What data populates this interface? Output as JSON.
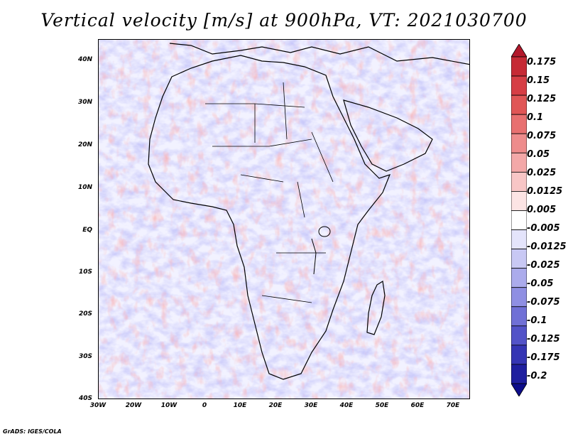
{
  "title": "Vertical velocity [m/s] at 900hPa, VT: 2021030700",
  "footer": "GrADS: IGES/COLA",
  "y_axis_labels": [
    "40N",
    "30N",
    "20N",
    "10N",
    "EQ",
    "10S",
    "20S",
    "30S",
    "40S"
  ],
  "x_axis_labels": [
    "30W",
    "20W",
    "10W",
    "0",
    "10E",
    "20E",
    "30E",
    "40E",
    "50E",
    "60E",
    "70E"
  ],
  "colorbar": {
    "labels": [
      "0.175",
      "0.15",
      "0.125",
      "0.1",
      "0.075",
      "0.05",
      "0.025",
      "0.0125",
      "0.005",
      "-0.005",
      "-0.0125",
      "-0.025",
      "-0.05",
      "-0.075",
      "-0.1",
      "-0.125",
      "-0.175",
      "-0.2"
    ],
    "colors": [
      "#b2182b",
      "#c62a35",
      "#d63e45",
      "#e05656",
      "#e87070",
      "#ee8c8c",
      "#f3a8a8",
      "#f8c6c6",
      "#fce4e4",
      "#ffffff",
      "#e4e4fb",
      "#c8c8f4",
      "#ababec",
      "#8f8fe3",
      "#7070d6",
      "#5353c8",
      "#3535b4",
      "#1f1f9f",
      "#0d0d8a"
    ]
  },
  "colors": {
    "positive": "#d63e45",
    "negative": "#5353c8",
    "background_field": "#e8e8ff",
    "coastline": "#000000"
  }
}
